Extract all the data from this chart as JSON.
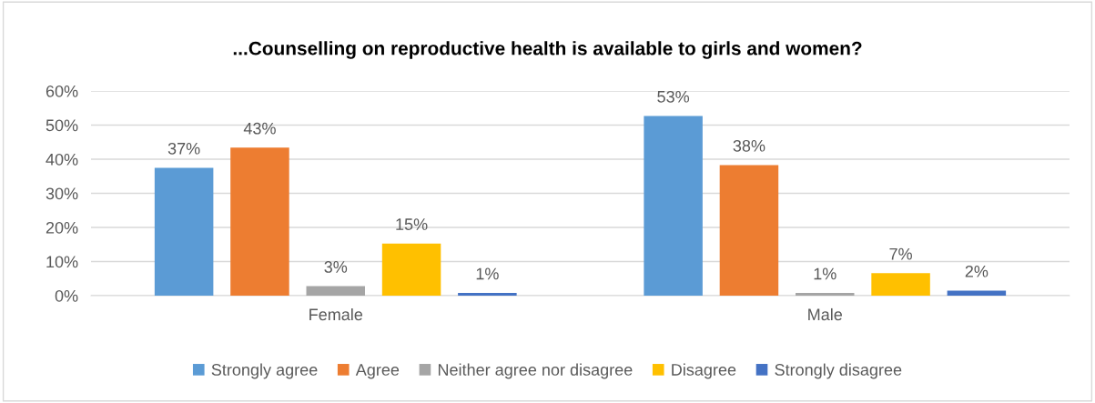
{
  "chart_data": {
    "type": "bar",
    "title": "...Counselling on reproductive health is available to girls and women?",
    "categories": [
      "Female",
      "Male"
    ],
    "series": [
      {
        "name": "Strongly agree",
        "color": "#5b9bd5",
        "values": [
          37.5,
          52.7
        ],
        "value_labels": [
          "37%",
          "53%"
        ]
      },
      {
        "name": "Agree",
        "color": "#ed7d31",
        "values": [
          43.4,
          38.3
        ],
        "value_labels": [
          "43%",
          "38%"
        ]
      },
      {
        "name": "Neither agree nor disagree",
        "color": "#a5a5a5",
        "values": [
          2.8,
          0.8
        ],
        "value_labels": [
          "3%",
          "1%"
        ]
      },
      {
        "name": "Disagree",
        "color": "#ffc000",
        "values": [
          15.3,
          6.6
        ],
        "value_labels": [
          "15%",
          "7%"
        ]
      },
      {
        "name": "Strongly disagree",
        "color": "#4472c4",
        "values": [
          0.8,
          1.5
        ],
        "value_labels": [
          "1%",
          "2%"
        ]
      }
    ],
    "ylim": [
      0,
      60
    ],
    "yticks": [
      {
        "value": 0,
        "label": "0%"
      },
      {
        "value": 10,
        "label": "10%"
      },
      {
        "value": 20,
        "label": "20%"
      },
      {
        "value": 30,
        "label": "30%"
      },
      {
        "value": 40,
        "label": "40%"
      },
      {
        "value": 50,
        "label": "50%"
      },
      {
        "value": 60,
        "label": "60%"
      }
    ],
    "grid": "y",
    "legend": "bottom"
  }
}
